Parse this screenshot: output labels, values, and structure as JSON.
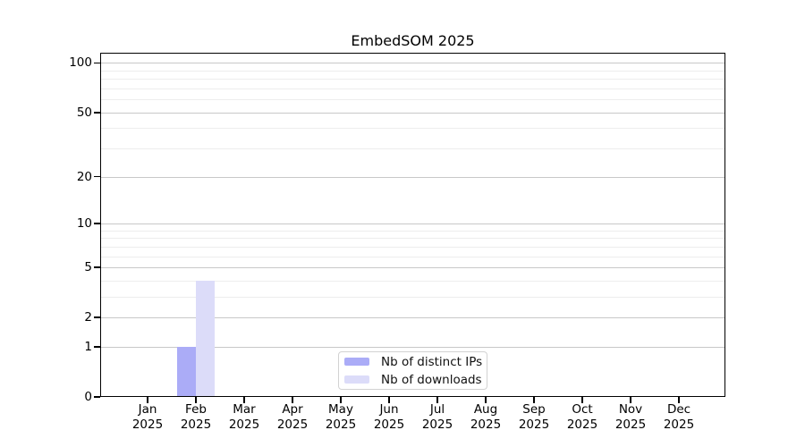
{
  "chart_data": {
    "type": "bar",
    "title": "EmbedSOM 2025",
    "months": [
      "Jan",
      "Feb",
      "Mar",
      "Apr",
      "May",
      "Jun",
      "Jul",
      "Aug",
      "Sep",
      "Oct",
      "Nov",
      "Dec"
    ],
    "year": "2025",
    "series": [
      {
        "name": "Nb of distinct IPs",
        "color": "#abacf7",
        "values": [
          0,
          1,
          0,
          0,
          0,
          0,
          0,
          0,
          0,
          0,
          0,
          0
        ]
      },
      {
        "name": "Nb of downloads",
        "color": "#dcdcf9",
        "values": [
          0,
          4,
          0,
          0,
          0,
          0,
          0,
          0,
          0,
          0,
          0,
          0
        ]
      }
    ],
    "y_axis": {
      "scale": "log1p",
      "ticks": [
        0,
        1,
        2,
        5,
        10,
        20,
        50,
        100
      ],
      "minor_ticks": [
        3,
        4,
        6,
        7,
        8,
        9,
        30,
        40,
        60,
        70,
        80,
        90
      ],
      "range": [
        0,
        115
      ]
    },
    "grid": {
      "horizontal": true,
      "vertical": false,
      "major_color": "#c8c8c8",
      "minor_color": "#ededed"
    },
    "legend": {
      "position": "inside lower center"
    }
  }
}
